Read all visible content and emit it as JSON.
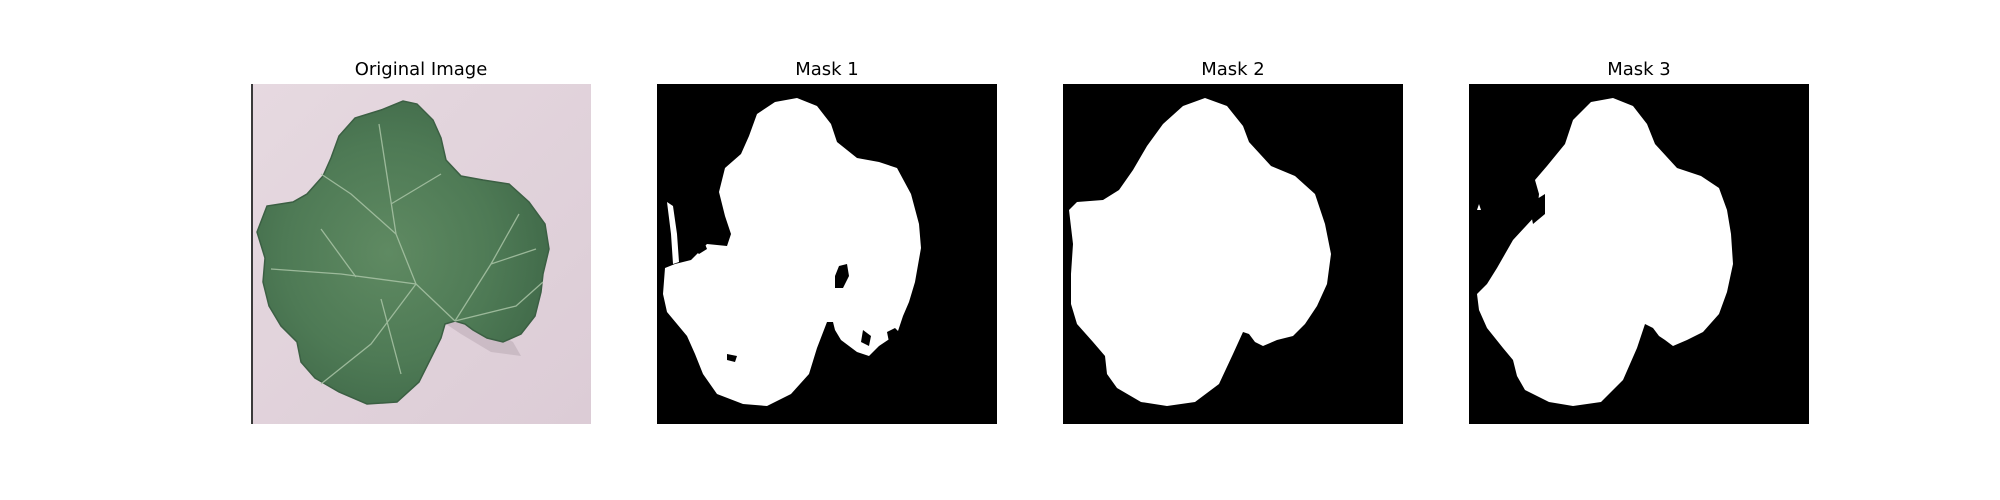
{
  "figure": {
    "panels": [
      {
        "title": "Original Image",
        "kind": "photo",
        "subject": "grape-leaf",
        "background_color": "#e2d4dc",
        "leaf_color": "#4e7a55"
      },
      {
        "title": "Mask 1",
        "kind": "mask",
        "mask_color": "#ffffff",
        "background_color": "#000000"
      },
      {
        "title": "Mask 2",
        "kind": "mask",
        "mask_color": "#ffffff",
        "background_color": "#000000"
      },
      {
        "title": "Mask 3",
        "kind": "mask",
        "mask_color": "#ffffff",
        "background_color": "#000000"
      }
    ]
  }
}
